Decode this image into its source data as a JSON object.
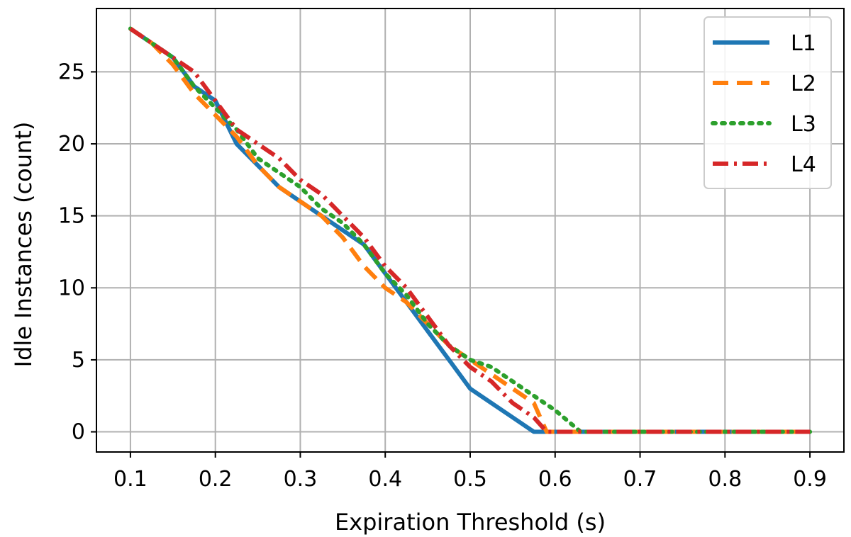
{
  "chart_data": {
    "type": "line",
    "xlabel": "Expiration Threshold (s)",
    "ylabel": "Idle Instances  (count)",
    "xlim": [
      0.06,
      0.94
    ],
    "ylim": [
      -1.4,
      29.4
    ],
    "xticks": [
      0.1,
      0.2,
      0.3,
      0.4,
      0.5,
      0.6,
      0.7,
      0.8,
      0.9
    ],
    "xtick_labels": [
      "0.1",
      "0.2",
      "0.3",
      "0.4",
      "0.5",
      "0.6",
      "0.7",
      "0.8",
      "0.9"
    ],
    "yticks": [
      0,
      5,
      10,
      15,
      20,
      25
    ],
    "ytick_labels": [
      "0",
      "5",
      "10",
      "15",
      "20",
      "25"
    ],
    "grid": true,
    "legend_position": "top-right",
    "series": [
      {
        "name": "L1",
        "color": "#1f77b4",
        "style": "solid",
        "x": [
          0.1,
          0.125,
          0.15,
          0.175,
          0.2,
          0.225,
          0.25,
          0.275,
          0.3,
          0.325,
          0.35,
          0.375,
          0.4,
          0.425,
          0.45,
          0.475,
          0.5,
          0.525,
          0.55,
          0.575,
          0.6,
          0.625,
          0.65,
          0.7,
          0.75,
          0.8,
          0.85,
          0.9
        ],
        "y": [
          28,
          27,
          26,
          24,
          23,
          20,
          18.5,
          17,
          16,
          15,
          14,
          13,
          11,
          9,
          7,
          5,
          3,
          2,
          1,
          0,
          0,
          0,
          0,
          0,
          0,
          0,
          0,
          0
        ]
      },
      {
        "name": "L2",
        "color": "#ff7f0e",
        "style": "dashed",
        "x": [
          0.1,
          0.125,
          0.15,
          0.175,
          0.2,
          0.225,
          0.25,
          0.275,
          0.3,
          0.325,
          0.35,
          0.375,
          0.4,
          0.425,
          0.45,
          0.475,
          0.5,
          0.525,
          0.55,
          0.575,
          0.59,
          0.6,
          0.625,
          0.65,
          0.7,
          0.75,
          0.8,
          0.85,
          0.9
        ],
        "y": [
          28,
          27,
          25.5,
          23.5,
          22,
          20.5,
          18.5,
          17,
          16,
          15,
          13.5,
          11.5,
          10,
          9,
          7.5,
          6,
          5,
          4,
          3,
          2,
          0,
          0,
          0,
          0,
          0,
          0,
          0,
          0,
          0
        ]
      },
      {
        "name": "L3",
        "color": "#2ca02c",
        "style": "dotted",
        "x": [
          0.1,
          0.125,
          0.15,
          0.175,
          0.2,
          0.225,
          0.25,
          0.275,
          0.3,
          0.325,
          0.35,
          0.375,
          0.4,
          0.425,
          0.45,
          0.475,
          0.5,
          0.525,
          0.55,
          0.575,
          0.6,
          0.63,
          0.65,
          0.7,
          0.75,
          0.8,
          0.85,
          0.9
        ],
        "y": [
          28,
          27,
          26,
          24,
          22.5,
          21,
          19,
          18,
          17,
          15.5,
          14.5,
          13,
          11,
          9.5,
          7.5,
          6,
          5,
          4.5,
          3.5,
          2.5,
          1.5,
          0,
          0,
          0,
          0,
          0,
          0,
          0
        ]
      },
      {
        "name": "L4",
        "color": "#d62728",
        "style": "dashdot",
        "x": [
          0.1,
          0.125,
          0.15,
          0.175,
          0.2,
          0.225,
          0.25,
          0.275,
          0.3,
          0.325,
          0.35,
          0.375,
          0.4,
          0.425,
          0.45,
          0.475,
          0.5,
          0.525,
          0.55,
          0.575,
          0.59,
          0.6,
          0.65,
          0.7,
          0.75,
          0.8,
          0.85,
          0.9
        ],
        "y": [
          28,
          27,
          26,
          25,
          23,
          21,
          20,
          19,
          17.5,
          16.5,
          15,
          13.5,
          11.5,
          10,
          8,
          6,
          4.5,
          3.5,
          2,
          1,
          0,
          0,
          0,
          0,
          0,
          0,
          0,
          0
        ]
      }
    ]
  }
}
